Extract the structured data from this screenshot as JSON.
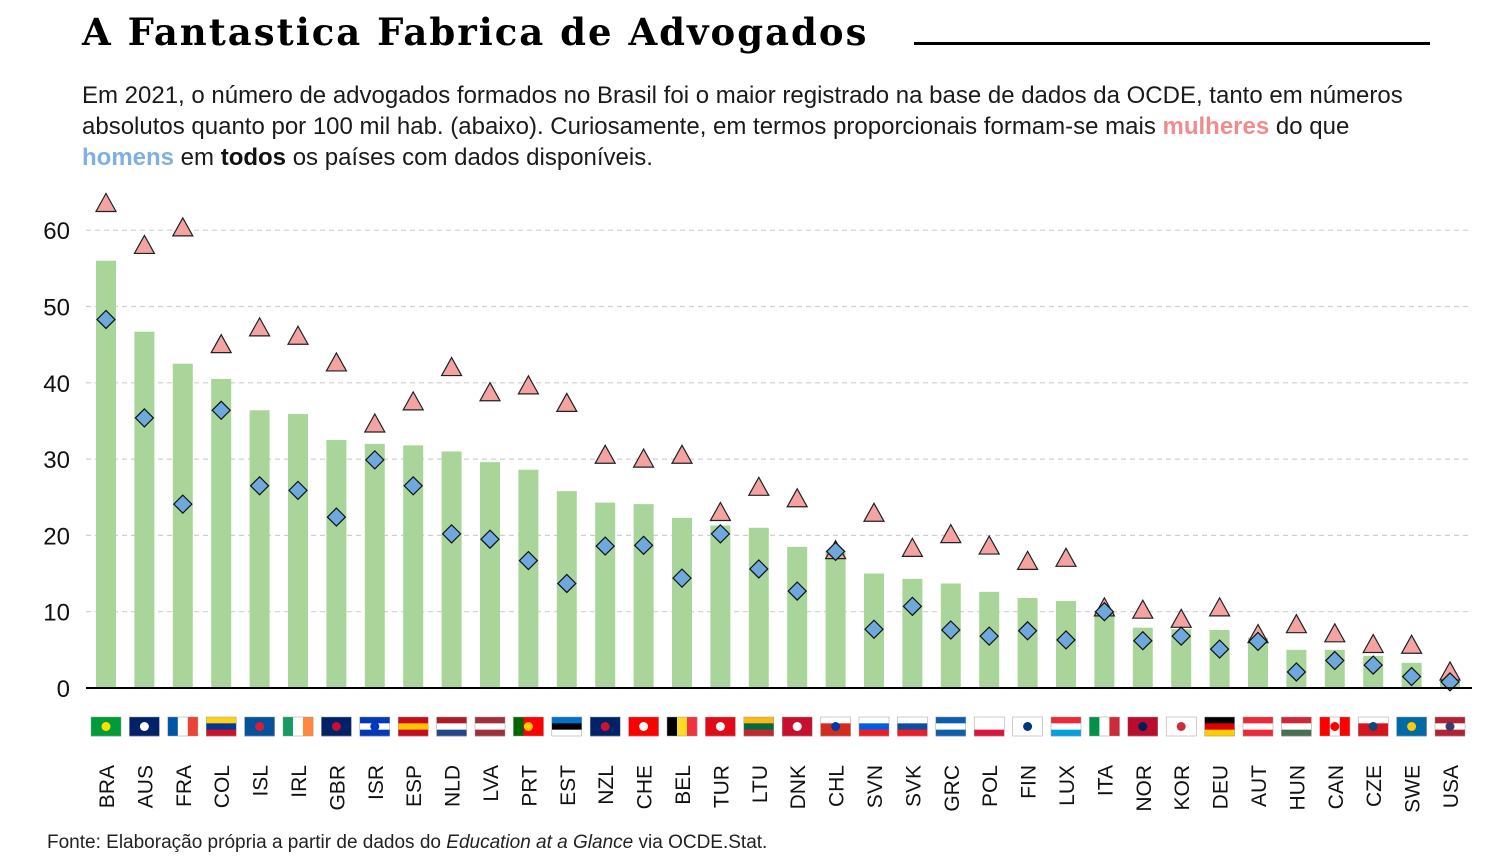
{
  "title": "A Fantastica Fabrica de Advogados",
  "subtitle": {
    "part1": "Em 2021, o número de advogados formados no Brasil foi o maior registrado na base de dados da OCDE, tanto em números absolutos quanto por 100 mil hab. (abaixo). Curiosamente, em termos proporcionais formam-se mais ",
    "women": "mulheres",
    "part2": " do que ",
    "men": "homens",
    "part3": " em ",
    "all": "todos",
    "part4": " os países com dados disponíveis."
  },
  "source": {
    "prefix": "Fonte: Elaboração própria a partir de dados do ",
    "italic": "Education at a Glance",
    "suffix": " via OCDE.Stat."
  },
  "colors": {
    "bar": "#a9d59a",
    "women": "#f4a3a3",
    "men": "#6fa8dc",
    "grid": "#cfcfcf"
  },
  "chart_data": {
    "type": "bar",
    "title": "",
    "xlabel": "",
    "ylabel": "",
    "ylim": [
      0,
      65
    ],
    "yticks": [
      0,
      10,
      20,
      30,
      40,
      50,
      60
    ],
    "grid": "horizontal dashed",
    "categories": [
      "BRA",
      "AUS",
      "FRA",
      "COL",
      "ISL",
      "IRL",
      "GBR",
      "ISR",
      "ESP",
      "NLD",
      "LVA",
      "PRT",
      "EST",
      "NZL",
      "CHE",
      "BEL",
      "TUR",
      "LTU",
      "DNK",
      "CHL",
      "SVN",
      "SVK",
      "GRC",
      "POL",
      "FIN",
      "LUX",
      "ITA",
      "NOR",
      "KOR",
      "DEU",
      "AUT",
      "HUN",
      "CAN",
      "CZE",
      "SWE",
      "USA"
    ],
    "series": [
      {
        "values": [
          56,
          46.7,
          42.5,
          40.5,
          36.4,
          35.9,
          32.5,
          32,
          31.8,
          31,
          29.6,
          28.6,
          25.8,
          24.3,
          24.1,
          22.3,
          21.3,
          21,
          18.5,
          18,
          15,
          14.3,
          13.7,
          12.6,
          11.8,
          11.4,
          10,
          7.9,
          7.7,
          7.6,
          6.6,
          5,
          5,
          4.2,
          3.3,
          1.3
        ]
      },
      {
        "values": [
          63.5,
          58,
          60.3,
          45,
          47.2,
          46.1,
          42.6,
          34.6,
          37.5,
          42,
          38.7,
          39.6,
          37.3,
          30.5,
          30,
          30.5,
          23,
          26.3,
          24.8,
          18,
          22.9,
          18.3,
          20.1,
          18.6,
          16.6,
          17,
          10.5,
          10.2,
          9,
          10.5,
          7,
          8.3,
          7.1,
          5.7,
          5.6,
          2.1
        ]
      },
      {
        "values": [
          48.3,
          35.4,
          24.1,
          36.4,
          26.5,
          25.9,
          22.4,
          29.9,
          26.5,
          20.2,
          19.5,
          16.7,
          13.7,
          18.6,
          18.7,
          14.4,
          20.2,
          15.6,
          12.7,
          17.9,
          7.7,
          10.7,
          7.6,
          6.8,
          7.5,
          6.3,
          10,
          6.2,
          6.8,
          5.1,
          6.1,
          2.1,
          3.6,
          3,
          1.5,
          0.8
        ]
      }
    ]
  },
  "flags": [
    {
      "code": "BRA",
      "stripes": "h",
      "colors": [
        "#009c3b",
        "#009c3b",
        "#009c3b"
      ],
      "emblem": "#ffdf00"
    },
    {
      "code": "AUS",
      "stripes": "h",
      "colors": [
        "#012169",
        "#012169",
        "#012169"
      ],
      "emblem": "#ffffff"
    },
    {
      "code": "FRA",
      "stripes": "v",
      "colors": [
        "#0055a4",
        "#ffffff",
        "#ef4135"
      ]
    },
    {
      "code": "COL",
      "stripes": "h",
      "colors": [
        "#fcd116",
        "#003893",
        "#ce1126"
      ]
    },
    {
      "code": "ISL",
      "stripes": "h",
      "colors": [
        "#02529c",
        "#02529c",
        "#02529c"
      ],
      "emblem": "#dc1e35"
    },
    {
      "code": "IRL",
      "stripes": "v",
      "colors": [
        "#169b62",
        "#ffffff",
        "#ff883e"
      ]
    },
    {
      "code": "GBR",
      "stripes": "h",
      "colors": [
        "#012169",
        "#012169",
        "#012169"
      ],
      "emblem": "#c8102e"
    },
    {
      "code": "ISR",
      "stripes": "h",
      "colors": [
        "#0038b8",
        "#ffffff",
        "#0038b8"
      ],
      "emblem": "#0038b8"
    },
    {
      "code": "ESP",
      "stripes": "h",
      "colors": [
        "#c60b1e",
        "#ffc400",
        "#c60b1e"
      ]
    },
    {
      "code": "NLD",
      "stripes": "h",
      "colors": [
        "#ae1c28",
        "#ffffff",
        "#21468b"
      ]
    },
    {
      "code": "LVA",
      "stripes": "h",
      "colors": [
        "#9e3039",
        "#ffffff",
        "#9e3039"
      ]
    },
    {
      "code": "PRT",
      "stripes": "v",
      "colors": [
        "#006600",
        "#ff0000",
        "#ff0000"
      ],
      "emblem": "#ffcc00"
    },
    {
      "code": "EST",
      "stripes": "h",
      "colors": [
        "#0072ce",
        "#000000",
        "#ffffff"
      ]
    },
    {
      "code": "NZL",
      "stripes": "h",
      "colors": [
        "#012169",
        "#012169",
        "#012169"
      ],
      "emblem": "#cc142b"
    },
    {
      "code": "CHE",
      "stripes": "h",
      "colors": [
        "#ff0000",
        "#ff0000",
        "#ff0000"
      ],
      "emblem": "#ffffff"
    },
    {
      "code": "BEL",
      "stripes": "v",
      "colors": [
        "#000000",
        "#fdda24",
        "#ef3340"
      ]
    },
    {
      "code": "TUR",
      "stripes": "h",
      "colors": [
        "#e30a17",
        "#e30a17",
        "#e30a17"
      ],
      "emblem": "#ffffff"
    },
    {
      "code": "LTU",
      "stripes": "h",
      "colors": [
        "#fdb913",
        "#006a44",
        "#c1272d"
      ]
    },
    {
      "code": "DNK",
      "stripes": "h",
      "colors": [
        "#c8102e",
        "#c8102e",
        "#c8102e"
      ],
      "emblem": "#ffffff"
    },
    {
      "code": "CHL",
      "stripes": "h",
      "colors": [
        "#ffffff",
        "#d52b1e",
        "#d52b1e"
      ],
      "emblem": "#0039a6"
    },
    {
      "code": "SVN",
      "stripes": "h",
      "colors": [
        "#ffffff",
        "#005ce5",
        "#ed1c24"
      ]
    },
    {
      "code": "SVK",
      "stripes": "h",
      "colors": [
        "#ffffff",
        "#0b4ea2",
        "#ee1c25"
      ]
    },
    {
      "code": "GRC",
      "stripes": "h",
      "colors": [
        "#0d5eaf",
        "#ffffff",
        "#0d5eaf"
      ]
    },
    {
      "code": "POL",
      "stripes": "h",
      "colors": [
        "#ffffff",
        "#ffffff",
        "#dc143c"
      ]
    },
    {
      "code": "FIN",
      "stripes": "h",
      "colors": [
        "#ffffff",
        "#ffffff",
        "#ffffff"
      ],
      "emblem": "#003580"
    },
    {
      "code": "LUX",
      "stripes": "h",
      "colors": [
        "#ed2939",
        "#ffffff",
        "#00a1de"
      ]
    },
    {
      "code": "ITA",
      "stripes": "v",
      "colors": [
        "#009246",
        "#ffffff",
        "#ce2b37"
      ]
    },
    {
      "code": "NOR",
      "stripes": "h",
      "colors": [
        "#ba0c2f",
        "#ba0c2f",
        "#ba0c2f"
      ],
      "emblem": "#00205b"
    },
    {
      "code": "KOR",
      "stripes": "h",
      "colors": [
        "#ffffff",
        "#ffffff",
        "#ffffff"
      ],
      "emblem": "#cd2e3a"
    },
    {
      "code": "DEU",
      "stripes": "h",
      "colors": [
        "#000000",
        "#dd0000",
        "#ffce00"
      ]
    },
    {
      "code": "AUT",
      "stripes": "h",
      "colors": [
        "#ed2939",
        "#ffffff",
        "#ed2939"
      ]
    },
    {
      "code": "HUN",
      "stripes": "h",
      "colors": [
        "#ce2939",
        "#ffffff",
        "#477050"
      ]
    },
    {
      "code": "CAN",
      "stripes": "v",
      "colors": [
        "#ff0000",
        "#ffffff",
        "#ff0000"
      ],
      "emblem": "#ff0000"
    },
    {
      "code": "CZE",
      "stripes": "h",
      "colors": [
        "#ffffff",
        "#d7141a",
        "#d7141a"
      ],
      "emblem": "#11457e"
    },
    {
      "code": "SWE",
      "stripes": "h",
      "colors": [
        "#006aa7",
        "#006aa7",
        "#006aa7"
      ],
      "emblem": "#fecc00"
    },
    {
      "code": "USA",
      "stripes": "h",
      "colors": [
        "#b22234",
        "#ffffff",
        "#b22234"
      ],
      "emblem": "#3c3b6e"
    }
  ]
}
